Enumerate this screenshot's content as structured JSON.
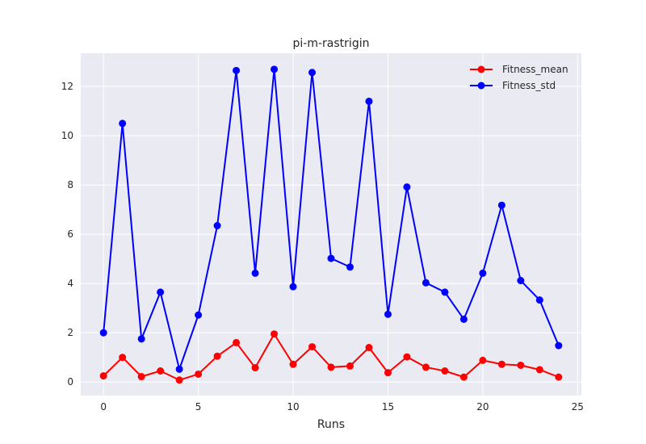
{
  "chart_data": {
    "type": "line",
    "title": "pi-m-rastrigin",
    "xlabel": "Runs",
    "ylabel": "",
    "xlim": [
      -1.2,
      25.2
    ],
    "ylim": [
      -0.55,
      13.35
    ],
    "xticks": [
      0,
      5,
      10,
      15,
      20,
      25
    ],
    "yticks": [
      0,
      2,
      4,
      6,
      8,
      10,
      12
    ],
    "grid": true,
    "legend_position": "top-right",
    "x": [
      0,
      1,
      2,
      3,
      4,
      5,
      6,
      7,
      8,
      9,
      10,
      11,
      12,
      13,
      14,
      15,
      16,
      17,
      18,
      19,
      20,
      21,
      22,
      23,
      24
    ],
    "series": [
      {
        "name": "Fitness_mean",
        "color": "#ff0000",
        "marker": "circle",
        "values": [
          0.25,
          1.0,
          0.22,
          0.45,
          0.08,
          0.32,
          1.05,
          1.6,
          0.58,
          1.95,
          0.72,
          1.43,
          0.6,
          0.65,
          1.4,
          0.38,
          1.02,
          0.6,
          0.45,
          0.2,
          0.88,
          0.72,
          0.68,
          0.5,
          0.2
        ]
      },
      {
        "name": "Fitness_std",
        "color": "#0000ff",
        "marker": "circle",
        "values": [
          2.0,
          10.5,
          1.75,
          3.65,
          0.52,
          2.72,
          6.35,
          12.65,
          4.42,
          12.7,
          3.87,
          12.57,
          5.02,
          4.67,
          11.4,
          2.75,
          7.92,
          4.03,
          3.65,
          2.55,
          4.42,
          7.18,
          4.12,
          3.33,
          1.48
        ]
      }
    ]
  }
}
